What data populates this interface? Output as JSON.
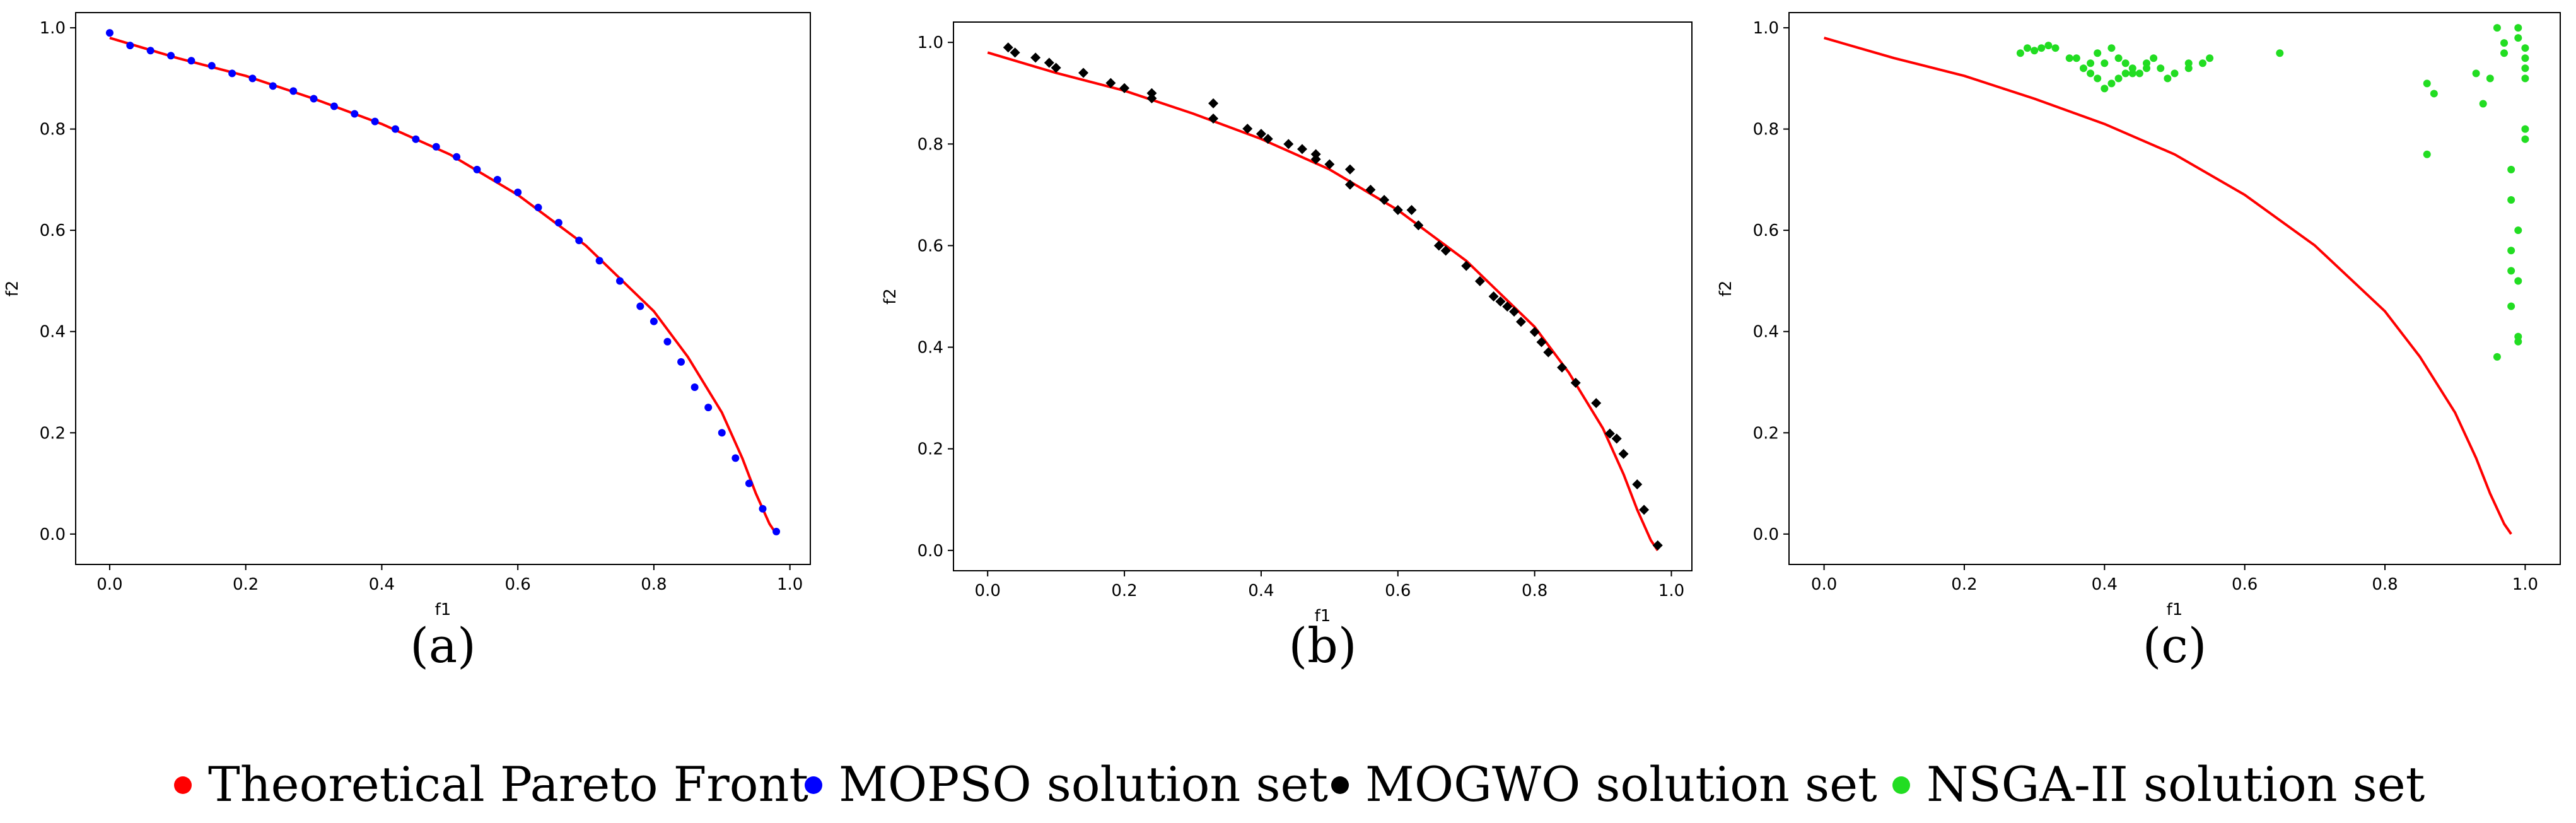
{
  "colors": {
    "theory": "#ff0000",
    "mopso": "#0000ff",
    "mogwo": "#000000",
    "nsga": "#22dd22"
  },
  "chart_data": [
    {
      "type": "scatter",
      "panel_label": "(a)",
      "xlabel": "f1",
      "ylabel": "f2",
      "xlim": [
        -0.05,
        1.03
      ],
      "ylim": [
        -0.06,
        1.03
      ],
      "xticks": [
        "0.0",
        "0.2",
        "0.4",
        "0.6",
        "0.8",
        "1.0"
      ],
      "yticks": [
        "0.0",
        "0.2",
        "0.4",
        "0.6",
        "0.8",
        "1.0"
      ],
      "series": [
        {
          "name": "Theoretical Pareto Front",
          "kind": "line",
          "color": "#ff0000",
          "x": [
            0.0,
            0.1,
            0.2,
            0.3,
            0.4,
            0.5,
            0.6,
            0.7,
            0.8,
            0.85,
            0.9,
            0.93,
            0.95,
            0.97,
            0.98
          ],
          "y": [
            0.98,
            0.94,
            0.905,
            0.86,
            0.81,
            0.75,
            0.67,
            0.57,
            0.44,
            0.35,
            0.24,
            0.15,
            0.08,
            0.02,
            0.0
          ]
        },
        {
          "name": "MOPSO solution set",
          "kind": "dots",
          "color": "#0000ff",
          "x": [
            0.0,
            0.03,
            0.06,
            0.09,
            0.12,
            0.15,
            0.18,
            0.21,
            0.24,
            0.27,
            0.3,
            0.33,
            0.36,
            0.39,
            0.42,
            0.45,
            0.48,
            0.51,
            0.54,
            0.57,
            0.6,
            0.63,
            0.66,
            0.69,
            0.72,
            0.75,
            0.78,
            0.8,
            0.82,
            0.84,
            0.86,
            0.88,
            0.9,
            0.92,
            0.94,
            0.96,
            0.98
          ],
          "y": [
            0.99,
            0.965,
            0.955,
            0.945,
            0.935,
            0.925,
            0.91,
            0.9,
            0.885,
            0.875,
            0.86,
            0.845,
            0.83,
            0.815,
            0.8,
            0.78,
            0.765,
            0.745,
            0.72,
            0.7,
            0.675,
            0.645,
            0.615,
            0.58,
            0.54,
            0.5,
            0.45,
            0.42,
            0.38,
            0.34,
            0.29,
            0.25,
            0.2,
            0.15,
            0.1,
            0.05,
            0.005
          ]
        }
      ]
    },
    {
      "type": "scatter",
      "panel_label": "(b)",
      "xlabel": "f1",
      "ylabel": "f2",
      "xlim": [
        -0.05,
        1.03
      ],
      "ylim": [
        -0.04,
        1.04
      ],
      "xticks": [
        "0.0",
        "0.2",
        "0.4",
        "0.6",
        "0.8",
        "1.0"
      ],
      "yticks": [
        "0.0",
        "0.2",
        "0.4",
        "0.6",
        "0.8",
        "1.0"
      ],
      "series": [
        {
          "name": "Theoretical Pareto Front",
          "kind": "line",
          "color": "#ff0000",
          "x": [
            0.0,
            0.1,
            0.2,
            0.3,
            0.4,
            0.5,
            0.6,
            0.7,
            0.8,
            0.85,
            0.9,
            0.93,
            0.95,
            0.97,
            0.98
          ],
          "y": [
            0.98,
            0.94,
            0.905,
            0.86,
            0.81,
            0.75,
            0.67,
            0.57,
            0.44,
            0.35,
            0.24,
            0.15,
            0.08,
            0.02,
            0.0
          ]
        },
        {
          "name": "MOGWO solution set",
          "kind": "diamonds",
          "color": "#000000",
          "x": [
            0.03,
            0.04,
            0.07,
            0.09,
            0.1,
            0.14,
            0.18,
            0.2,
            0.24,
            0.24,
            0.33,
            0.33,
            0.38,
            0.4,
            0.41,
            0.44,
            0.46,
            0.48,
            0.48,
            0.5,
            0.53,
            0.53,
            0.56,
            0.58,
            0.6,
            0.62,
            0.63,
            0.66,
            0.67,
            0.7,
            0.72,
            0.74,
            0.75,
            0.76,
            0.77,
            0.78,
            0.8,
            0.81,
            0.82,
            0.84,
            0.86,
            0.89,
            0.91,
            0.92,
            0.93,
            0.95,
            0.96,
            0.98
          ],
          "y": [
            0.99,
            0.98,
            0.97,
            0.96,
            0.95,
            0.94,
            0.92,
            0.91,
            0.9,
            0.89,
            0.88,
            0.85,
            0.83,
            0.82,
            0.81,
            0.8,
            0.79,
            0.78,
            0.77,
            0.76,
            0.75,
            0.72,
            0.71,
            0.69,
            0.67,
            0.67,
            0.64,
            0.6,
            0.59,
            0.56,
            0.53,
            0.5,
            0.49,
            0.48,
            0.47,
            0.45,
            0.43,
            0.41,
            0.39,
            0.36,
            0.33,
            0.29,
            0.23,
            0.22,
            0.19,
            0.13,
            0.08,
            0.01
          ]
        }
      ]
    },
    {
      "type": "scatter",
      "panel_label": "(c)",
      "xlabel": "f1",
      "ylabel": "f2",
      "xlim": [
        -0.05,
        1.05
      ],
      "ylim": [
        -0.06,
        1.03
      ],
      "xticks": [
        "0.0",
        "0.2",
        "0.4",
        "0.6",
        "0.8",
        "1.0"
      ],
      "yticks": [
        "0.0",
        "0.2",
        "0.4",
        "0.6",
        "0.8",
        "1.0"
      ],
      "series": [
        {
          "name": "Theoretical Pareto Front",
          "kind": "line",
          "color": "#ff0000",
          "x": [
            0.0,
            0.1,
            0.2,
            0.3,
            0.4,
            0.5,
            0.6,
            0.7,
            0.8,
            0.85,
            0.9,
            0.93,
            0.95,
            0.97,
            0.98
          ],
          "y": [
            0.98,
            0.94,
            0.905,
            0.86,
            0.81,
            0.75,
            0.67,
            0.57,
            0.44,
            0.35,
            0.24,
            0.15,
            0.08,
            0.02,
            0.0
          ]
        },
        {
          "name": "NSGA-II solution set",
          "kind": "dots",
          "color": "#22dd22",
          "x": [
            0.28,
            0.29,
            0.3,
            0.31,
            0.32,
            0.33,
            0.35,
            0.37,
            0.38,
            0.39,
            0.4,
            0.41,
            0.42,
            0.43,
            0.44,
            0.45,
            0.46,
            0.47,
            0.48,
            0.5,
            0.52,
            0.54,
            0.65,
            0.36,
            0.39,
            0.41,
            0.43,
            0.46,
            0.49,
            0.52,
            0.55,
            0.38,
            0.4,
            0.42,
            0.44,
            0.86,
            0.86,
            0.87,
            0.93,
            0.94,
            0.95,
            0.96,
            0.96,
            0.97,
            0.97,
            0.98,
            0.98,
            0.98,
            0.99,
            0.99,
            0.99,
            0.99,
            1.0,
            1.0,
            1.0,
            1.0,
            1.0,
            1.0,
            0.98,
            0.99,
            0.99,
            0.98
          ],
          "y": [
            0.95,
            0.96,
            0.955,
            0.96,
            0.965,
            0.96,
            0.94,
            0.92,
            0.91,
            0.95,
            0.93,
            0.96,
            0.94,
            0.93,
            0.92,
            0.91,
            0.93,
            0.94,
            0.92,
            0.91,
            0.92,
            0.93,
            0.95,
            0.94,
            0.9,
            0.89,
            0.91,
            0.92,
            0.9,
            0.93,
            0.94,
            0.93,
            0.88,
            0.9,
            0.91,
            0.89,
            0.75,
            0.87,
            0.91,
            0.85,
            0.9,
            1.0,
            0.35,
            0.95,
            0.97,
            0.66,
            0.56,
            0.52,
            0.39,
            0.38,
            1.0,
            0.98,
            0.96,
            0.94,
            0.92,
            0.9,
            0.78,
            0.8,
            0.72,
            0.6,
            0.5,
            0.45
          ]
        }
      ]
    }
  ],
  "legend": [
    {
      "label": "Theoretical Pareto Front",
      "color": "#ff0000"
    },
    {
      "label": "MOPSO solution set",
      "color": "#0000ff"
    },
    {
      "label": "MOGWO solution set",
      "color": "#000000"
    },
    {
      "label": "NSGA-II solution set",
      "color": "#22dd22"
    }
  ]
}
